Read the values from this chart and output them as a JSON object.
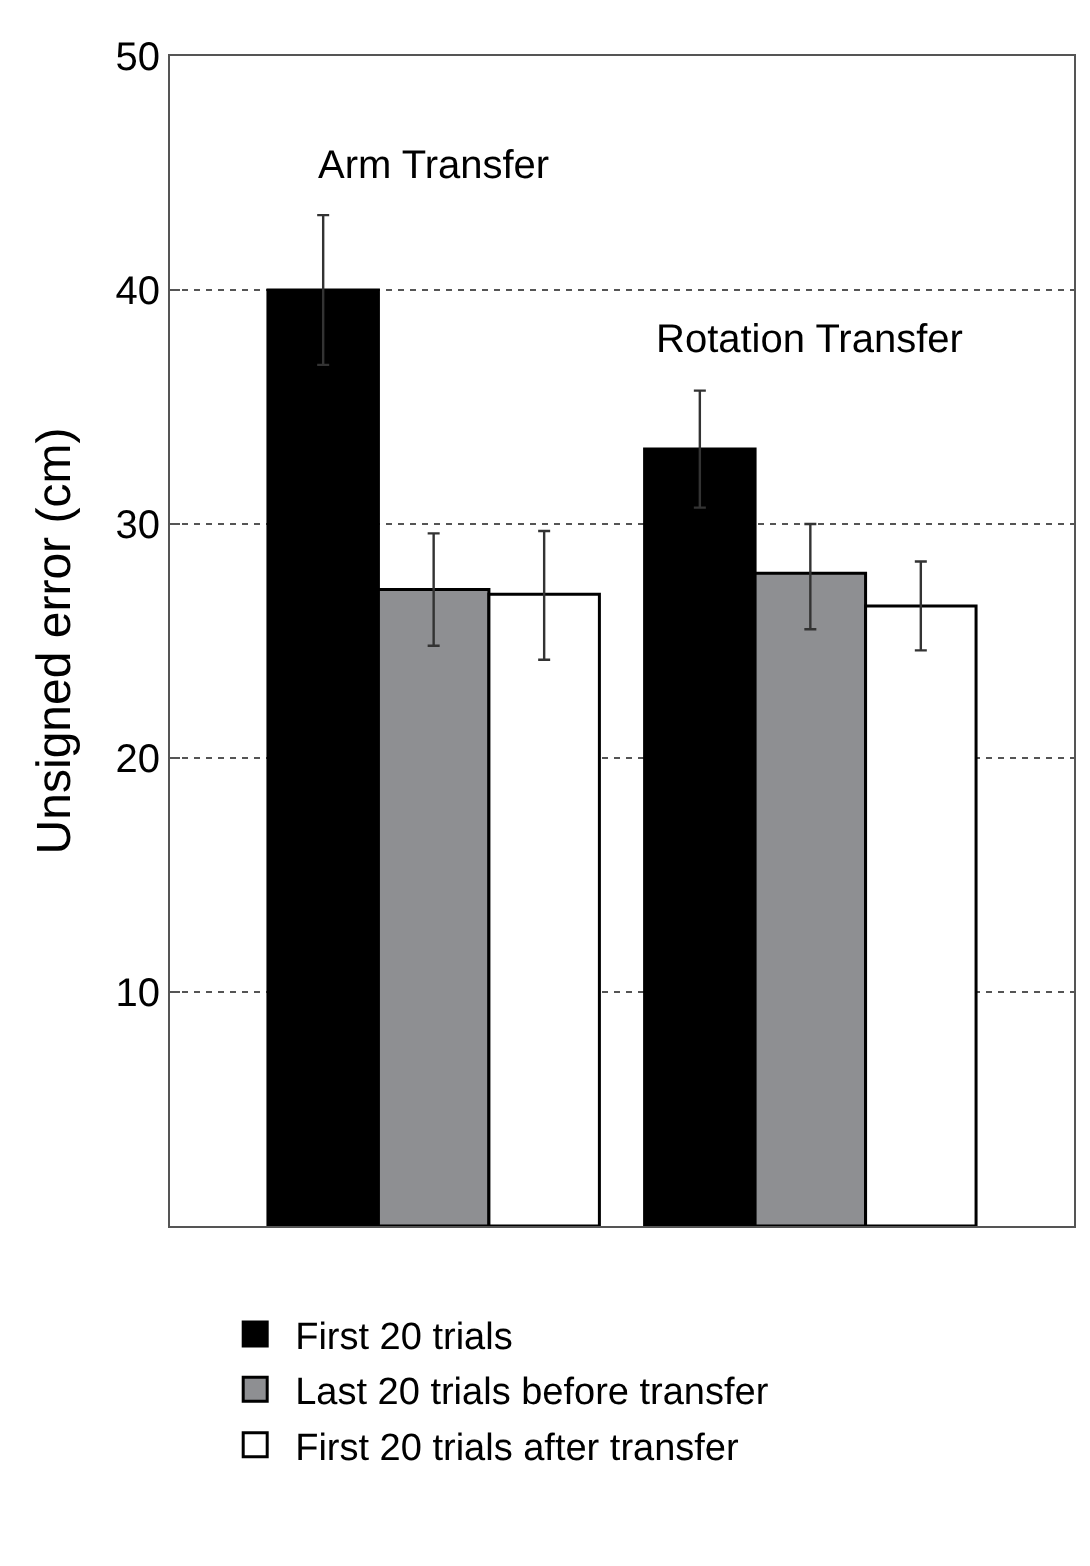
{
  "chart_data": {
    "type": "bar",
    "ylabel": "Unsigned error (cm)",
    "categories": [
      null,
      null
    ],
    "series": [
      {
        "name": "First 20 trials",
        "color": "#000000",
        "values": [
          40.0,
          33.2
        ],
        "errors": [
          [
            36.8,
            43.2
          ],
          [
            30.7,
            35.7
          ]
        ]
      },
      {
        "name": "Last 20 trials before transfer",
        "color": "#8e8f92",
        "values": [
          27.2,
          27.9
        ],
        "errors": [
          [
            24.8,
            29.6
          ],
          [
            25.5,
            30.0
          ]
        ]
      },
      {
        "name": "First 20 trials after transfer",
        "color": "#ffffff",
        "values": [
          27.0,
          26.5
        ],
        "errors": [
          [
            24.2,
            29.7
          ],
          [
            24.6,
            28.4
          ]
        ]
      }
    ],
    "annotations": [
      "Arm Transfer",
      "Rotation Transfer"
    ],
    "ylim": [
      0,
      50
    ],
    "yticks": [
      10,
      20,
      30,
      40,
      50
    ],
    "grid": "y",
    "legend": "bottom"
  }
}
